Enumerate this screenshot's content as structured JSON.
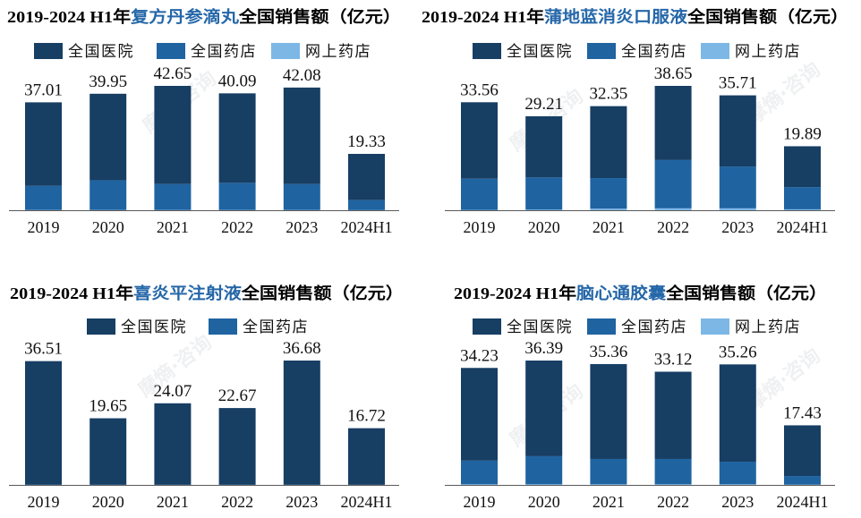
{
  "watermark": "摩熵·咨询",
  "colors": {
    "title_highlight": "#2567a8"
  },
  "chart_data": [
    {
      "type": "bar",
      "stacked": true,
      "legend": "top",
      "grid": false,
      "title": {
        "lead": "2019-2024 H1年",
        "product": "复方丹参滴丸",
        "tail": "全国销售额（亿元）"
      },
      "categories": [
        "2019",
        "2020",
        "2021",
        "2022",
        "2023",
        "2024H1"
      ],
      "totals": [
        37.01,
        39.95,
        42.65,
        40.09,
        42.08,
        19.33
      ],
      "series": [
        {
          "name": "全国医院",
          "color": "#173e63",
          "values": [
            28.61,
            29.65,
            33.65,
            30.69,
            33.08,
            15.88
          ]
        },
        {
          "name": "全国药店",
          "color": "#1f63a1",
          "values": [
            8.3,
            10.2,
            8.9,
            9.3,
            8.9,
            3.4
          ]
        },
        {
          "name": "网上药店",
          "color": "#7db7e6",
          "values": [
            0.1,
            0.1,
            0.1,
            0.1,
            0.1,
            0.05
          ]
        }
      ]
    },
    {
      "type": "bar",
      "stacked": true,
      "legend": "top",
      "grid": false,
      "title": {
        "lead": "2019-2024 H1年",
        "product": "蒲地蓝消炎口服液",
        "tail": "全国销售额（亿元）"
      },
      "categories": [
        "2019",
        "2020",
        "2021",
        "2022",
        "2023",
        "2024H1"
      ],
      "totals": [
        33.56,
        29.21,
        32.35,
        38.65,
        35.71,
        19.89
      ],
      "series": [
        {
          "name": "全国医院",
          "color": "#173e63",
          "values": [
            23.76,
            19.01,
            22.35,
            23.05,
            22.11,
            12.69
          ]
        },
        {
          "name": "全国药店",
          "color": "#1f63a1",
          "values": [
            9.7,
            10.0,
            9.5,
            15.0,
            13.0,
            6.9
          ]
        },
        {
          "name": "网上药店",
          "color": "#7db7e6",
          "values": [
            0.1,
            0.2,
            0.5,
            0.6,
            0.6,
            0.3
          ]
        }
      ]
    },
    {
      "type": "bar",
      "stacked": true,
      "legend": "top",
      "grid": false,
      "title": {
        "lead": "2019-2024 H1年",
        "product": "喜炎平注射液",
        "tail": "全国销售额（亿元）"
      },
      "categories": [
        "2019",
        "2020",
        "2021",
        "2022",
        "2023",
        "2024H1"
      ],
      "totals": [
        36.51,
        19.65,
        24.07,
        22.67,
        36.68,
        16.72
      ],
      "series": [
        {
          "name": "全国医院",
          "color": "#173e63",
          "values": [
            36.41,
            19.55,
            23.97,
            22.57,
            36.58,
            16.67
          ]
        },
        {
          "name": "全国药店",
          "color": "#1f63a1",
          "values": [
            0.1,
            0.1,
            0.1,
            0.1,
            0.1,
            0.05
          ]
        }
      ]
    },
    {
      "type": "bar",
      "stacked": true,
      "legend": "top",
      "grid": false,
      "title": {
        "lead": "2019-2024 H1年",
        "product": "脑心通胶囊",
        "tail": "全国销售额（亿元）"
      },
      "categories": [
        "2019",
        "2020",
        "2021",
        "2022",
        "2023",
        "2024H1"
      ],
      "totals": [
        34.23,
        36.39,
        35.36,
        33.12,
        35.26,
        17.43
      ],
      "series": [
        {
          "name": "全国医院",
          "color": "#173e63",
          "values": [
            27.13,
            27.99,
            27.76,
            25.52,
            28.46,
            14.83
          ]
        },
        {
          "name": "全国药店",
          "color": "#1f63a1",
          "values": [
            6.9,
            8.2,
            7.4,
            7.4,
            6.6,
            2.5
          ]
        },
        {
          "name": "网上药店",
          "color": "#7db7e6",
          "values": [
            0.2,
            0.2,
            0.2,
            0.2,
            0.2,
            0.1
          ]
        }
      ]
    }
  ]
}
